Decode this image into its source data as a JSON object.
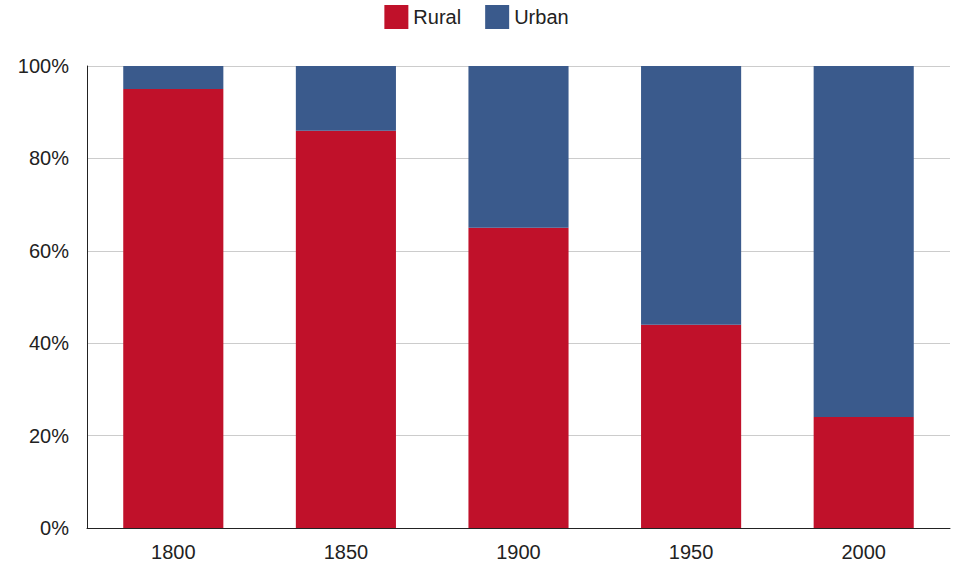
{
  "chart_data": {
    "type": "bar",
    "stacked": true,
    "categories": [
      "1800",
      "1850",
      "1900",
      "1950",
      "2000"
    ],
    "series": [
      {
        "name": "Rural",
        "color": "#c0112a",
        "values": [
          95,
          86,
          65,
          44,
          24
        ]
      },
      {
        "name": "Urban",
        "color": "#3a5a8c",
        "values": [
          5,
          14,
          35,
          56,
          76
        ]
      }
    ],
    "ylim": [
      0,
      100
    ],
    "yticks": [
      {
        "value": 0,
        "label": "0%"
      },
      {
        "value": 20,
        "label": "20%"
      },
      {
        "value": 40,
        "label": "40%"
      },
      {
        "value": 60,
        "label": "60%"
      },
      {
        "value": 80,
        "label": "80%"
      },
      {
        "value": 100,
        "label": "100%"
      }
    ],
    "grid": true,
    "legend": "top"
  }
}
